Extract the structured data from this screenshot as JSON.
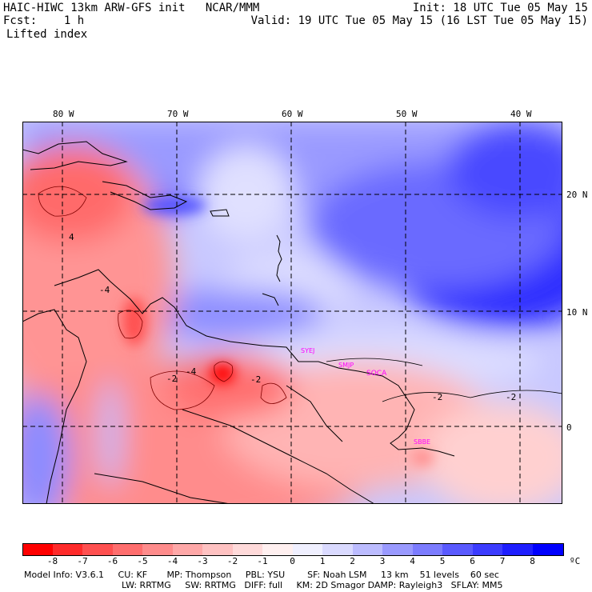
{
  "header": {
    "model_title": "HAIC-HIWC 13km ARW-GFS init   NCAR/MMM",
    "forecast": "Fcst:    1 h",
    "field": "Lifted index",
    "init": "Init: 18 UTC Tue 05 May 15",
    "valid": "Valid: 19 UTC Tue 05 May 15 (16 LST Tue 05 May 15)"
  },
  "map": {
    "lon_labels": [
      "80 W",
      "70 W",
      "60 W",
      "50 W",
      "40 W"
    ],
    "lat_labels": [
      "20 N",
      "10 N",
      "0"
    ],
    "station_labels": [
      "SYEJ",
      "SMJP",
      "SOCA",
      "SBBE"
    ],
    "contour_labels": [
      "4",
      "-2",
      "-4",
      "-2",
      "-2",
      "-2",
      "-4"
    ]
  },
  "colorbar": {
    "ticks": [
      "-8",
      "-7",
      "-6",
      "-5",
      "-4",
      "-3",
      "-2",
      "-1",
      "0",
      "1",
      "2",
      "3",
      "4",
      "5",
      "6",
      "7",
      "8"
    ],
    "unit": "ºC",
    "colors": [
      "#ff0000",
      "#ff2b2b",
      "#ff5050",
      "#ff6e6e",
      "#ff8c8c",
      "#ffa8a8",
      "#ffc2c2",
      "#ffdada",
      "#fff0f0",
      "#f0f0ff",
      "#dadaff",
      "#bcbcff",
      "#9a9aff",
      "#7c7cff",
      "#5a5aff",
      "#3c3cff",
      "#1e1eff",
      "#0000ff"
    ]
  },
  "model_info": {
    "line1": "Model Info: V3.6.1     CU: KF       MP: Thompson     PBL: YSU        SF: Noah LSM     13 km    51 levels    60 sec",
    "line2": "LW: RRTMG     SW: RRTMG   DIFF: full     KM: 2D Smagor DAMP: Rayleigh3   SFLAY: MM5"
  }
}
